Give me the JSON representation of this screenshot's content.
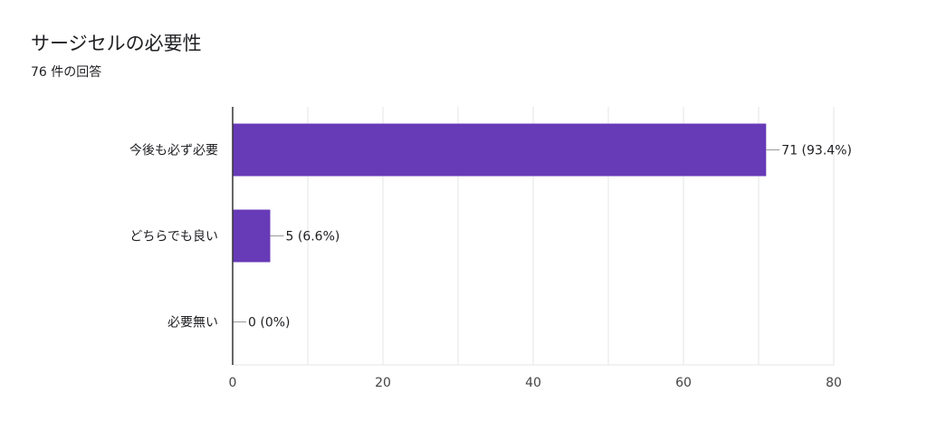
{
  "header": {
    "title": "サージセルの必要性",
    "response_count": "76 件の回答"
  },
  "colors": {
    "bar": "#673ab7",
    "grid": "#e6e6e6",
    "axis": "#333333",
    "text": "#202124",
    "tick_text": "#444444"
  },
  "chart_data": {
    "type": "bar",
    "orientation": "horizontal",
    "categories": [
      "今後も必ず必要",
      "どちらでも良い",
      "必要無い"
    ],
    "values": [
      71,
      5,
      0
    ],
    "data_labels": [
      "71 (93.4%)",
      "5 (6.6%)",
      "0 (0%)"
    ],
    "xlim": [
      0,
      80
    ],
    "xticks": [
      0,
      20,
      40,
      60,
      80
    ],
    "grid": true,
    "legend": "none"
  }
}
